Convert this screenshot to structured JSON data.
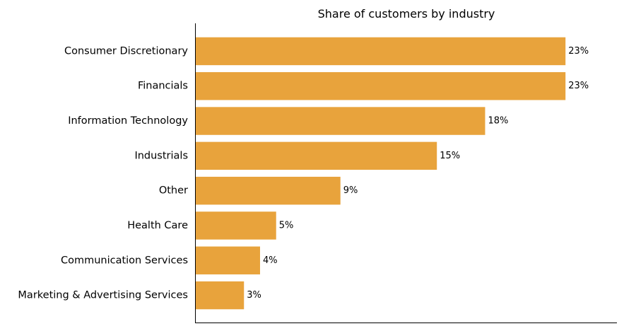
{
  "chart_data": {
    "type": "bar",
    "orientation": "horizontal",
    "title": "Share of customers by industry",
    "xlabel": "",
    "ylabel": "",
    "categories": [
      "Consumer Discretionary",
      "Financials",
      "Information Technology",
      "Industrials",
      "Other",
      "Health Care",
      "Communication Services",
      "Marketing & Advertising Services"
    ],
    "values": [
      23,
      23,
      18,
      15,
      9,
      5,
      4,
      3
    ],
    "value_labels": [
      "23%",
      "23%",
      "18%",
      "15%",
      "9%",
      "5%",
      "4%",
      "3%"
    ],
    "unit": "%",
    "xlim": [
      0,
      26.2
    ],
    "grid": false,
    "legend": "none",
    "bar_color": "#E8A33C"
  }
}
